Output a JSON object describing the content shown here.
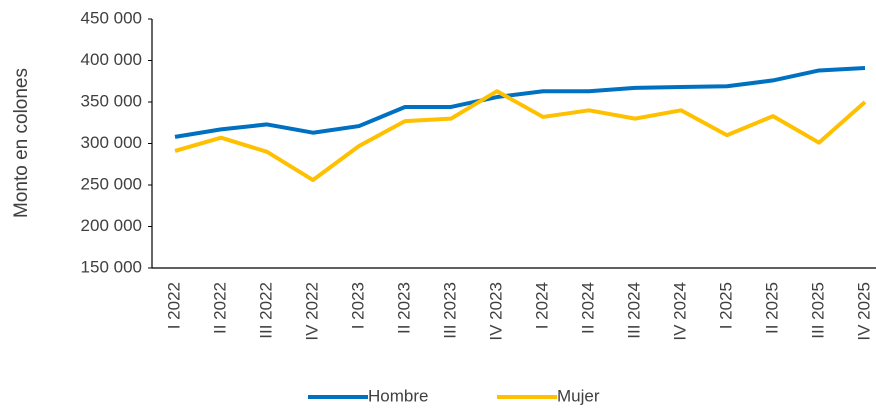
{
  "chart_data": {
    "type": "line",
    "y_label": "Monto en colones",
    "categories": [
      "I 2022",
      "II 2022",
      "III 2022",
      "IV 2022",
      "I 2023",
      "II 2023",
      "III 2023",
      "IV 2023",
      "I 2024",
      "II 2024",
      "III 2024",
      "IV 2024",
      "I 2025",
      "II 2025",
      "III 2025",
      "IV 2025"
    ],
    "series": [
      {
        "name": "Hombre",
        "color": "#0070c0",
        "values": [
          308000,
          317000,
          323000,
          313000,
          321000,
          344000,
          344000,
          356000,
          363000,
          363000,
          367000,
          368000,
          369000,
          376000,
          388000,
          391000
        ]
      },
      {
        "name": "Mujer",
        "color": "#ffc000",
        "values": [
          291000,
          307000,
          290000,
          256000,
          297000,
          327000,
          330000,
          363000,
          332000,
          340000,
          330000,
          340000,
          310000,
          333000,
          301000,
          350000
        ]
      }
    ],
    "ylim": [
      150000,
      450000
    ],
    "yticks": [
      {
        "value": 150000,
        "label": "150 000"
      },
      {
        "value": 200000,
        "label": "200 000"
      },
      {
        "value": 250000,
        "label": "250 000"
      },
      {
        "value": 300000,
        "label": "300 000"
      },
      {
        "value": 350000,
        "label": "350 000"
      },
      {
        "value": 400000,
        "label": "400 000"
      },
      {
        "value": 450000,
        "label": "450 000"
      }
    ],
    "grid": false,
    "legend": "bottom"
  }
}
